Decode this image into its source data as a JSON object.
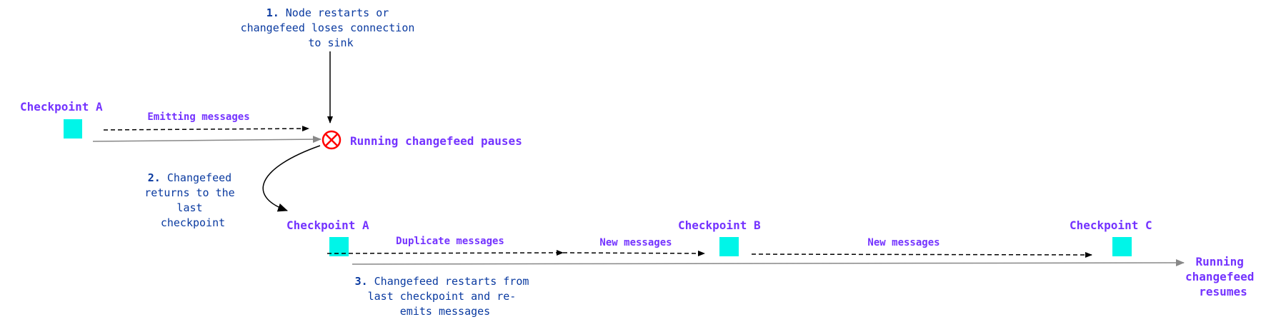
{
  "colors": {
    "label": "#7433ff",
    "note": "#0a3aa0",
    "checkpoint": "#00f5e8",
    "error": "#ff0000",
    "timeline": "#888888"
  },
  "step1": {
    "num": "1.",
    "lines": [
      "Node restarts or",
      "changefeed loses connection",
      "to sink"
    ]
  },
  "step2": {
    "num": "2.",
    "lines": [
      "Changefeed",
      "returns to the",
      "last",
      "checkpoint"
    ]
  },
  "step3": {
    "num": "3.",
    "lines": [
      "Changefeed restarts from",
      "last checkpoint and re-",
      "emits messages"
    ]
  },
  "top": {
    "checkpoint": "Checkpoint A",
    "emitting": "Emitting messages",
    "pause": "Running changefeed pauses",
    "error_icon": "circle-x-icon"
  },
  "bottom": {
    "checkpoint_a": "Checkpoint A",
    "checkpoint_b": "Checkpoint B",
    "checkpoint_c": "Checkpoint C",
    "duplicate": "Duplicate messages",
    "new1": "New messages",
    "new2": "New messages",
    "resumes": [
      "Running",
      "changefeed",
      "resumes"
    ]
  }
}
